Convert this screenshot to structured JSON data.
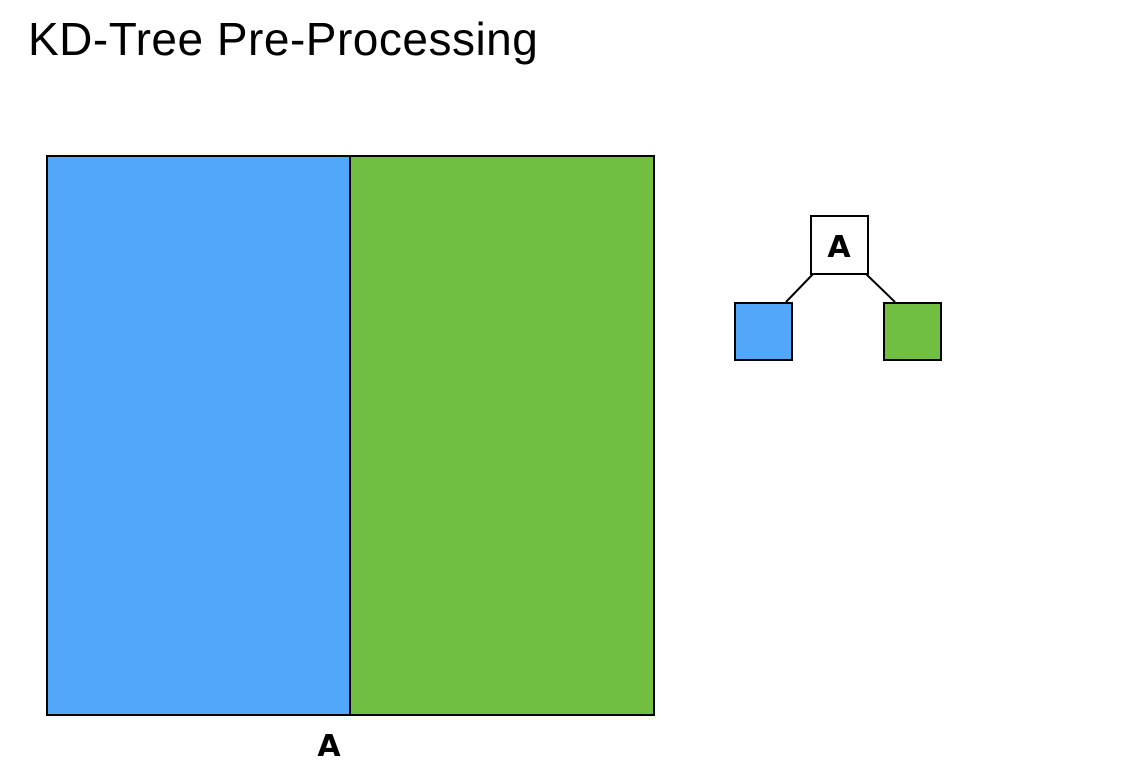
{
  "title": "KD-Tree Pre-Processing",
  "split_label": "A",
  "tree": {
    "root_label": "A"
  },
  "colors": {
    "left_region": "#51a7f9",
    "right_region": "#70bf41",
    "stroke": "#000000"
  }
}
